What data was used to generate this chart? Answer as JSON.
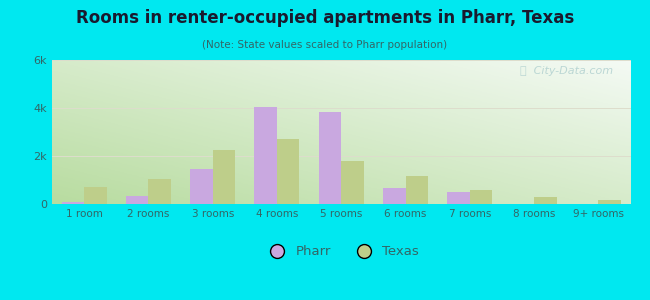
{
  "title": "Rooms in renter-occupied apartments in Pharr, Texas",
  "subtitle": "(Note: State values scaled to Pharr population)",
  "categories": [
    "1 room",
    "2 rooms",
    "3 rooms",
    "4 rooms",
    "5 rooms",
    "6 rooms",
    "7 rooms",
    "8 rooms",
    "9+ rooms"
  ],
  "pharr_values": [
    80,
    320,
    1450,
    4050,
    3850,
    680,
    480,
    0,
    0
  ],
  "texas_values": [
    700,
    1050,
    2250,
    2700,
    1800,
    1150,
    580,
    280,
    180
  ],
  "pharr_color": "#c9a8e0",
  "texas_color": "#bece8a",
  "background_color": "#00e8f0",
  "title_color": "#1a1a2e",
  "subtitle_color": "#336666",
  "tick_color": "#336666",
  "grid_color": "#ddddcc",
  "ylim": [
    0,
    6000
  ],
  "yticks": [
    0,
    2000,
    4000,
    6000
  ],
  "ytick_labels": [
    "0",
    "2k",
    "4k",
    "6k"
  ],
  "legend_pharr": "Pharr",
  "legend_texas": "Texas",
  "bar_width": 0.35,
  "watermark_text": "ⓘ  City-Data.com"
}
